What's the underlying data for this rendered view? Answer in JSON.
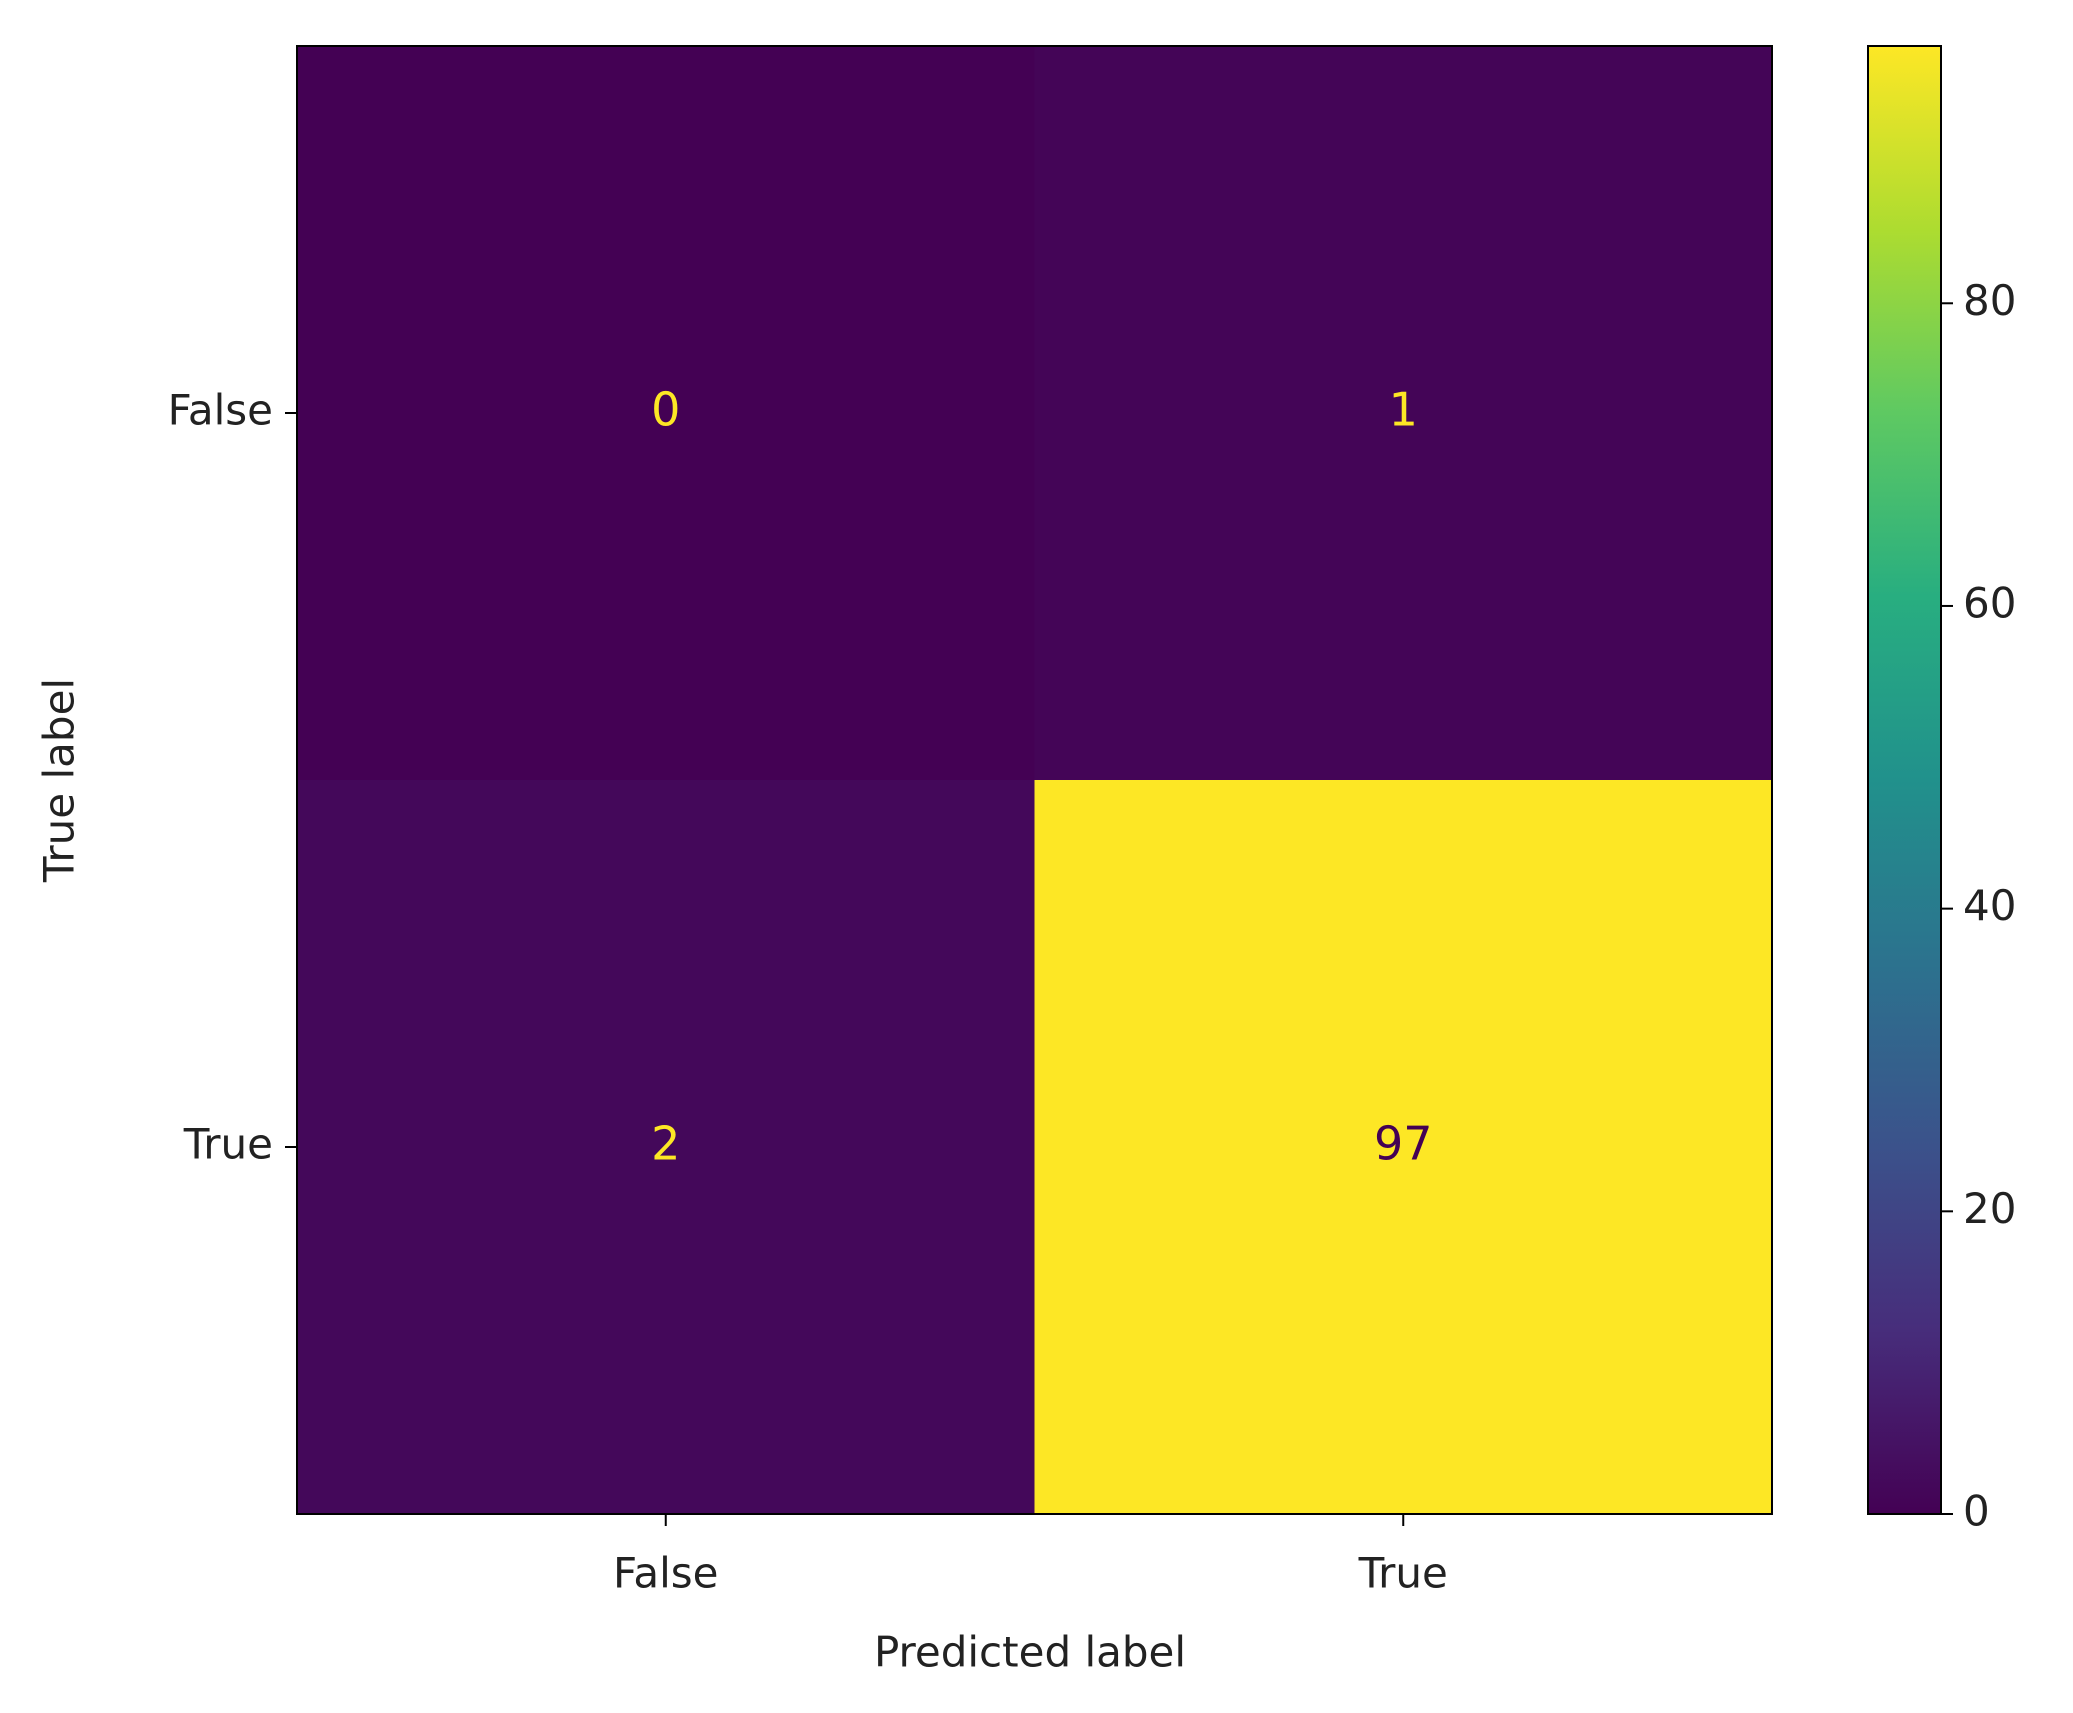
{
  "chart_data": {
    "type": "heatmap",
    "x_categories": [
      "False",
      "True"
    ],
    "y_categories": [
      "False",
      "True"
    ],
    "values": [
      [
        0,
        1
      ],
      [
        2,
        97
      ]
    ],
    "xlabel": "Predicted label",
    "ylabel": "True label",
    "colormap": "viridis",
    "clim": [
      0,
      97
    ],
    "cticks": [
      0,
      20,
      40,
      60,
      80
    ]
  }
}
